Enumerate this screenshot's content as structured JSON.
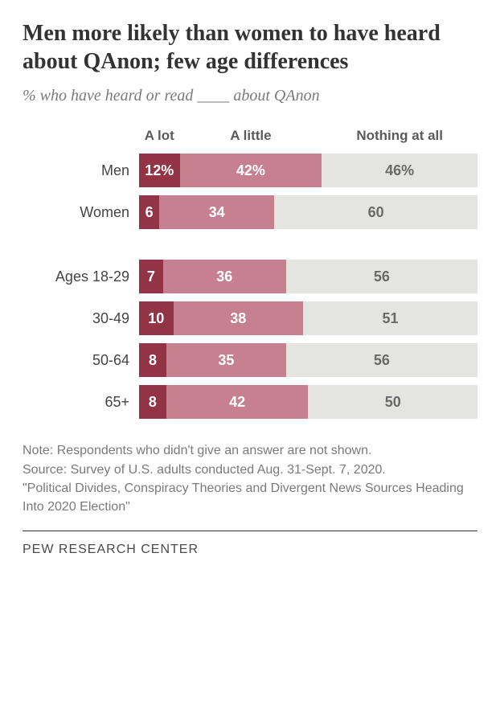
{
  "title": "Men more likely than women to have heard about QAnon; few age differences",
  "title_fontsize": 28,
  "subtitle": "% who have heard or read ____ about QAnon",
  "subtitle_fontsize": 20,
  "colors": {
    "a_lot": "#923346",
    "a_little": "#c7808f",
    "nothing": "#e4e4e1",
    "text_on_dark": "#ffffff",
    "text_on_light": "#6a6a6a",
    "header_text": "#5a5a5a",
    "label_text": "#444444"
  },
  "columns": {
    "a_lot": "A lot",
    "a_little": "A little",
    "nothing": "Nothing at all"
  },
  "header_fontsize": 17,
  "label_fontsize": 18,
  "value_fontsize": 18,
  "groups": [
    {
      "rows": [
        {
          "label": "Men",
          "a_lot": 12,
          "a_little": 42,
          "nothing": 46,
          "show_pct": true
        },
        {
          "label": "Women",
          "a_lot": 6,
          "a_little": 34,
          "nothing": 60,
          "show_pct": false
        }
      ]
    },
    {
      "rows": [
        {
          "label": "Ages 18-29",
          "a_lot": 7,
          "a_little": 36,
          "nothing": 56,
          "show_pct": false
        },
        {
          "label": "30-49",
          "a_lot": 10,
          "a_little": 38,
          "nothing": 51,
          "show_pct": false
        },
        {
          "label": "50-64",
          "a_lot": 8,
          "a_little": 35,
          "nothing": 56,
          "show_pct": false
        },
        {
          "label": "65+",
          "a_lot": 8,
          "a_little": 42,
          "nothing": 50,
          "show_pct": false
        }
      ]
    }
  ],
  "note_lines": [
    "Note: Respondents who didn't give an answer are not shown.",
    "Source: Survey of U.S. adults conducted Aug. 31-Sept. 7, 2020.",
    "\"Political Divides, Conspiracy Theories and Divergent News Sources Heading Into 2020 Election\""
  ],
  "note_fontsize": 16,
  "footer": "PEW RESEARCH CENTER",
  "footer_fontsize": 16
}
